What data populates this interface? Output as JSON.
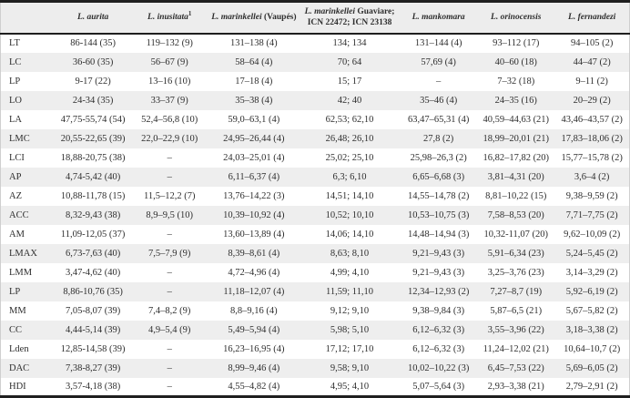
{
  "table": {
    "corner_label": "",
    "columns": [
      {
        "species": "L. aurita",
        "sup": "",
        "rest": ""
      },
      {
        "species": "L. inusitata",
        "sup": "1",
        "rest": ""
      },
      {
        "species": "L. marinkellei",
        "sup": "",
        "rest": "(Vaupés)"
      },
      {
        "species": "L. marinkellei",
        "sup": "",
        "rest": "Guaviare; ICN 22472; ICN 23138"
      },
      {
        "species": "L. mankomara",
        "sup": "",
        "rest": ""
      },
      {
        "species": "L. orinocensis",
        "sup": "",
        "rest": ""
      },
      {
        "species": "L. fernandezi",
        "sup": "",
        "rest": ""
      }
    ],
    "rows": [
      {
        "label": "LT",
        "cells": [
          "86-144 (35)",
          "119–132 (9)",
          "131–138 (4)",
          "134; 134",
          "131–144 (4)",
          "93–112 (17)",
          "94–105 (2)"
        ]
      },
      {
        "label": "LC",
        "cells": [
          "36-60 (35)",
          "56–67 (9)",
          "58–64 (4)",
          "70; 64",
          "57,69 (4)",
          "40–60 (18)",
          "44–47 (2)"
        ]
      },
      {
        "label": "LP",
        "cells": [
          "9-17 (22)",
          "13–16 (10)",
          "17–18 (4)",
          "15; 17",
          "–",
          "7–32 (18)",
          "9–11 (2)"
        ]
      },
      {
        "label": "LO",
        "cells": [
          "24-34 (35)",
          "33–37 (9)",
          "35–38 (4)",
          "42; 40",
          "35–46 (4)",
          "24–35 (16)",
          "20–29 (2)"
        ]
      },
      {
        "label": "LA",
        "cells": [
          "47,75-55,74 (54)",
          "52,4–56,8 (10)",
          "59,0–63,1 (4)",
          "62,53; 62,10",
          "63,47–65,31 (4)",
          "40,59–44,63 (21)",
          "43,46–43,57 (2)"
        ]
      },
      {
        "label": "LMC",
        "cells": [
          "20,55-22,65 (39)",
          "22,0–22,9 (10)",
          "24,95–26,44 (4)",
          "26,48; 26,10",
          "27,8 (2)",
          "18,99–20,01 (21)",
          "17,83–18,06 (2)"
        ]
      },
      {
        "label": "LCI",
        "cells": [
          "18,88-20,75 (38)",
          "–",
          "24,03–25,01 (4)",
          "25,02; 25,10",
          "25,98–26,3 (2)",
          "16,82–17,82 (20)",
          "15,77–15,78 (2)"
        ]
      },
      {
        "label": "AP",
        "cells": [
          "4,74-5,42 (40)",
          "–",
          "6,11–6,37 (4)",
          "6,3; 6,10",
          "6,65–6,68 (3)",
          "3,81–4,31 (20)",
          "3,6–4 (2)"
        ]
      },
      {
        "label": "AZ",
        "cells": [
          "10,88-11,78 (15)",
          "11,5–12,2 (7)",
          "13,76–14,22 (3)",
          "14,51; 14,10",
          "14,55–14,78 (2)",
          "8,81–10,22 (15)",
          "9,38–9,59 (2)"
        ]
      },
      {
        "label": "ACC",
        "cells": [
          "8,32-9,43 (38)",
          "8,9–9,5 (10)",
          "10,39–10,92 (4)",
          "10,52; 10,10",
          "10,53–10,75 (3)",
          "7,58–8,53 (20)",
          "7,71–7,75 (2)"
        ]
      },
      {
        "label": "AM",
        "cells": [
          "11,09-12,05 (37)",
          "–",
          "13,60–13,89 (4)",
          "14,06; 14,10",
          "14,48–14,94 (3)",
          "10,32-11,07 (20)",
          "9,62–10,09 (2)"
        ]
      },
      {
        "label": "LMAX",
        "cells": [
          "6,73-7,63 (40)",
          "7,5–7,9 (9)",
          "8,39–8,61 (4)",
          "8,63; 8,10",
          "9,21–9,43 (3)",
          "5,91–6,34 (23)",
          "5,24–5,45 (2)"
        ]
      },
      {
        "label": "LMM",
        "cells": [
          "3,47-4,62 (40)",
          "–",
          "4,72–4,96 (4)",
          "4,99; 4,10",
          "9,21–9,43 (3)",
          "3,25–3,76 (23)",
          "3,14–3,29 (2)"
        ]
      },
      {
        "label": "LP",
        "cells": [
          "8,86-10,76 (35)",
          "–",
          "11,18–12,07 (4)",
          "11,59; 11,10",
          "12,34–12,93 (2)",
          "7,27–8,7 (19)",
          "5,92–6,19 (2)"
        ]
      },
      {
        "label": "MM",
        "cells": [
          "7,05-8,07 (39)",
          "7,4–8,2 (9)",
          "8,8–9,16 (4)",
          "9,12; 9,10",
          "9,38–9,84 (3)",
          "5,87–6,5 (21)",
          "5,67–5,82 (2)"
        ]
      },
      {
        "label": "CC",
        "cells": [
          "4,44-5,14 (39)",
          "4,9–5,4 (9)",
          "5,49–5,94 (4)",
          "5,98; 5,10",
          "6,12–6,32 (3)",
          "3,55–3,96 (22)",
          "3,18–3,38 (2)"
        ]
      },
      {
        "label": "Lden",
        "cells": [
          "12,85-14,58 (39)",
          "–",
          "16,23–16,95 (4)",
          "17,12; 17,10",
          "6,12–6,32 (3)",
          "11,24–12,02 (21)",
          "10,64–10,7 (2)"
        ]
      },
      {
        "label": "DAC",
        "cells": [
          "7,38-8,27 (39)",
          "–",
          "8,99–9,46 (4)",
          "9,58; 9,10",
          "10,02–10,22 (3)",
          "6,45–7,53 (22)",
          "5,69–6,05 (2)"
        ]
      },
      {
        "label": "HDI",
        "cells": [
          "3,57-4,18 (38)",
          "–",
          "4,55–4,82 (4)",
          "4,95; 4,10",
          "5,07–5,64 (3)",
          "2,93–3,38 (21)",
          "2,79–2,91 (2)"
        ]
      }
    ]
  },
  "colors": {
    "row_alt_bg": "#eeeeee",
    "header_bg": "#ededed",
    "border": "#1f1f1f",
    "text": "#2e2e2e"
  }
}
